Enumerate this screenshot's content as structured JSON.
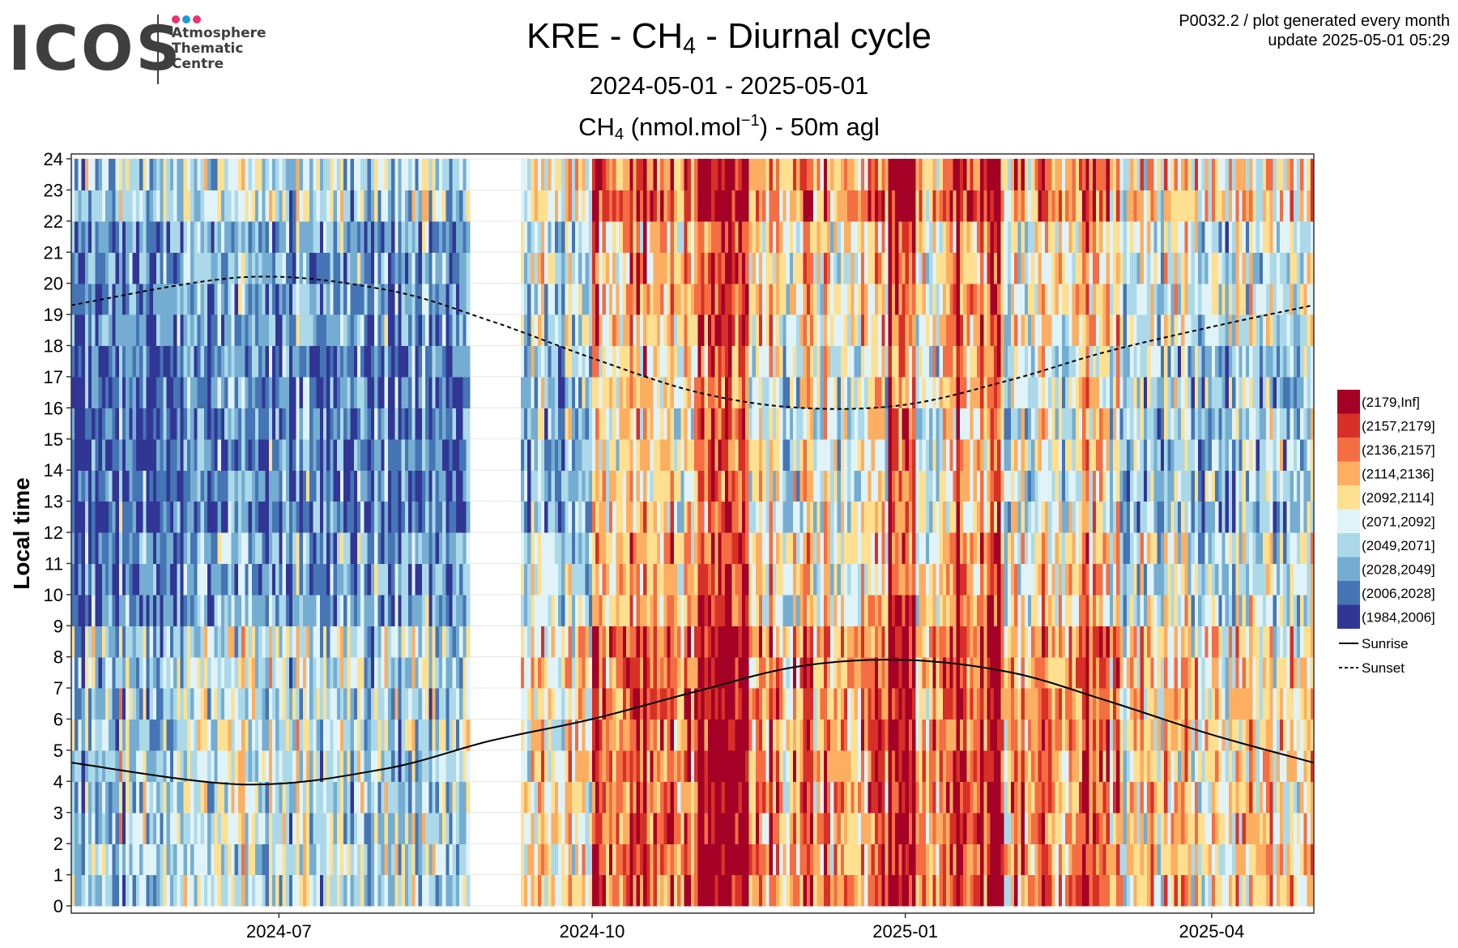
{
  "header": {
    "logo_word": "ICOS",
    "logo_lines": [
      "Atmosphere",
      "Thematic",
      "Centre"
    ],
    "logo_dot_colors": [
      "#e8336d",
      "#1f9ad6",
      "#e8336d"
    ],
    "plot_id": "P0032.2 / plot generated every month",
    "update": "update  2025-05-01 05:29"
  },
  "chart_data": {
    "type": "heatmap",
    "title_parts": {
      "pre": "KRE - CH",
      "sub": "4",
      "post": " - Diurnal cycle"
    },
    "subtitle": "2024-05-01 - 2025-05-01",
    "variable_parts": {
      "pre": "CH",
      "sub": "4",
      "mid": " (nmol.mol",
      "sup": "−1",
      "post": ") - 50m agl"
    },
    "ylabel": "Local time",
    "xlabel": "",
    "x_range": [
      "2024-05-01",
      "2025-05-01"
    ],
    "data_gap": [
      "2024-08-26",
      "2024-09-10"
    ],
    "x_ticks": [
      {
        "date": "2024-07-01",
        "label": "2024-07"
      },
      {
        "date": "2024-10-01",
        "label": "2024-10"
      },
      {
        "date": "2025-01-01",
        "label": "2025-01"
      },
      {
        "date": "2025-04-01",
        "label": "2025-04"
      }
    ],
    "ylim": [
      0,
      24
    ],
    "y_ticks": [
      0,
      1,
      2,
      3,
      4,
      5,
      6,
      7,
      8,
      9,
      10,
      11,
      12,
      13,
      14,
      15,
      16,
      17,
      18,
      19,
      20,
      21,
      22,
      23,
      24
    ],
    "grid": true,
    "legend_position": "right",
    "bins": [
      {
        "label": "(2179,Inf]",
        "color": "#a50026"
      },
      {
        "label": "(2157,2179]",
        "color": "#d73027"
      },
      {
        "label": "(2136,2157]",
        "color": "#f46d43"
      },
      {
        "label": "(2114,2136]",
        "color": "#fdae61"
      },
      {
        "label": "(2092,2114]",
        "color": "#fee090"
      },
      {
        "label": "(2071,2092]",
        "color": "#e0f3f8"
      },
      {
        "label": "(2049,2071]",
        "color": "#abd9e9"
      },
      {
        "label": "(2028,2049]",
        "color": "#74add1"
      },
      {
        "label": "(2006,2028]",
        "color": "#4575b4"
      },
      {
        "label": "(1984,2006]",
        "color": "#313695"
      }
    ],
    "lines": [
      {
        "name": "Sunrise",
        "style": "solid",
        "points": [
          [
            "2024-05-01",
            4.6
          ],
          [
            "2024-06-21",
            3.9
          ],
          [
            "2024-08-01",
            4.4
          ],
          [
            "2024-09-01",
            5.3
          ],
          [
            "2024-10-01",
            6.0
          ],
          [
            "2024-11-01",
            6.9
          ],
          [
            "2024-12-01",
            7.7
          ],
          [
            "2025-01-01",
            7.9
          ],
          [
            "2025-02-01",
            7.5
          ],
          [
            "2025-03-01",
            6.6
          ],
          [
            "2025-04-01",
            5.5
          ],
          [
            "2025-05-01",
            4.6
          ]
        ]
      },
      {
        "name": "Sunset",
        "style": "dashed",
        "points": [
          [
            "2024-05-01",
            19.3
          ],
          [
            "2024-06-21",
            20.2
          ],
          [
            "2024-08-01",
            19.8
          ],
          [
            "2024-09-01",
            18.8
          ],
          [
            "2024-10-01",
            17.6
          ],
          [
            "2024-11-01",
            16.5
          ],
          [
            "2024-12-01",
            16.0
          ],
          [
            "2025-01-01",
            16.1
          ],
          [
            "2025-02-01",
            16.9
          ],
          [
            "2025-03-01",
            17.8
          ],
          [
            "2025-04-01",
            18.6
          ],
          [
            "2025-05-01",
            19.3
          ]
        ]
      }
    ]
  }
}
